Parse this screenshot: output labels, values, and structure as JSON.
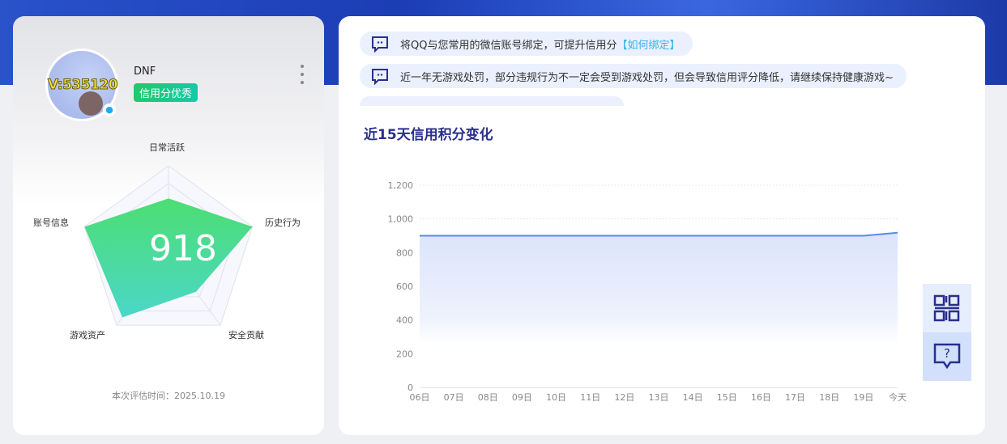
{
  "profile": {
    "vip_text": "V:535120",
    "name": "DNF",
    "badge": "信用分优秀",
    "qq_icon": "qq-penguin-icon"
  },
  "radar": {
    "score": "918",
    "axes": [
      {
        "label": "日常活跃",
        "value": 0.63
      },
      {
        "label": "历史行为",
        "value": 1.0
      },
      {
        "label": "安全贡献",
        "value": 0.53
      },
      {
        "label": "游戏资产",
        "value": 0.89
      },
      {
        "label": "账号信息",
        "value": 1.0
      }
    ],
    "fill_colors": [
      "#4cde72",
      "#4bd7c8"
    ]
  },
  "eval_time": "本次评估时间：2025.10.19",
  "tips": [
    {
      "text": "将QQ与您常用的微信账号绑定，可提升信用分",
      "link": "【如何绑定】"
    },
    {
      "text": "近一年无游戏处罚，部分违规行为不一定会受到游戏处罚，但会导致信用评分降低，请继续保持健康游戏~"
    }
  ],
  "chart_title": "近15天信用积分变化",
  "chart_data": {
    "type": "area",
    "categories": [
      "06日",
      "07日",
      "08日",
      "09日",
      "10日",
      "11日",
      "12日",
      "13日",
      "14日",
      "15日",
      "16日",
      "17日",
      "18日",
      "19日",
      "今天"
    ],
    "values": [
      900,
      900,
      900,
      900,
      900,
      900,
      900,
      900,
      900,
      900,
      900,
      900,
      900,
      900,
      918
    ],
    "ylim": [
      0,
      1200
    ],
    "yticks": [
      "0",
      "200",
      "400",
      "600",
      "800",
      "1,000",
      "1,200"
    ],
    "grid": true,
    "color": "#5b8ae6"
  },
  "side_buttons": [
    {
      "icon": "qr-code-icon"
    },
    {
      "icon": "help-chat-icon"
    }
  ]
}
